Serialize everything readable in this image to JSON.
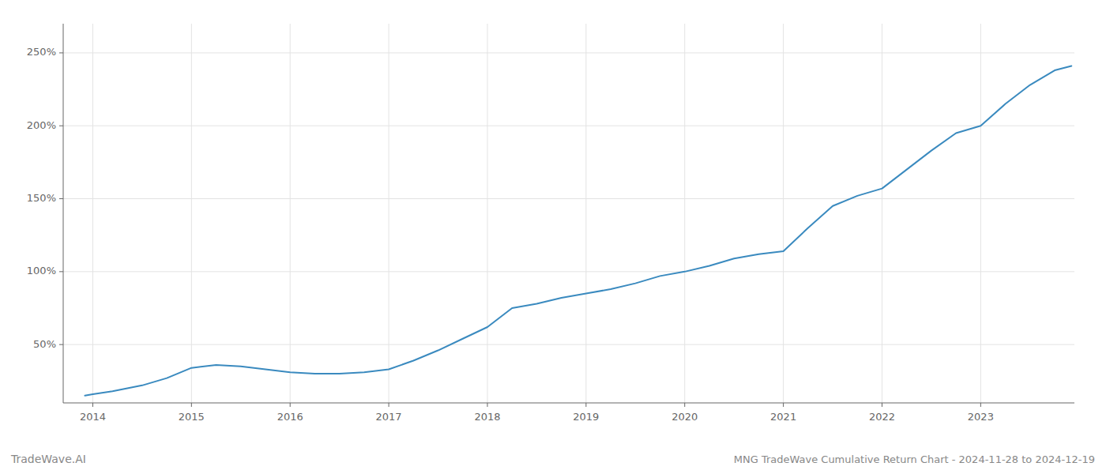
{
  "chart_data": {
    "type": "line",
    "title": "MNG TradeWave Cumulative Return Chart - 2024-11-28 to 2024-12-19",
    "annotations": [
      "TradeWave.AI"
    ],
    "color": "#3a8abf",
    "x": [
      2013.92,
      2014.0,
      2014.2,
      2014.5,
      2014.75,
      2015.0,
      2015.25,
      2015.5,
      2015.75,
      2016.0,
      2016.25,
      2016.5,
      2016.75,
      2017.0,
      2017.25,
      2017.5,
      2017.75,
      2018.0,
      2018.25,
      2018.5,
      2018.75,
      2019.0,
      2019.25,
      2019.5,
      2019.75,
      2020.0,
      2020.25,
      2020.5,
      2020.75,
      2021.0,
      2021.25,
      2021.5,
      2021.75,
      2022.0,
      2022.25,
      2022.5,
      2022.75,
      2023.0,
      2023.25,
      2023.5,
      2023.75,
      2023.92
    ],
    "values": [
      15,
      16,
      18,
      22,
      27,
      34,
      36,
      35,
      33,
      31,
      30,
      30,
      31,
      33,
      39,
      46,
      54,
      62,
      75,
      78,
      82,
      85,
      88,
      92,
      97,
      100,
      104,
      109,
      112,
      114,
      130,
      145,
      152,
      157,
      170,
      183,
      195,
      200,
      215,
      228,
      238,
      241
    ],
    "xlim": [
      2013.7,
      2023.95
    ],
    "ylim": [
      10,
      270
    ],
    "xticks": [
      2014,
      2015,
      2016,
      2017,
      2018,
      2019,
      2020,
      2021,
      2022,
      2023
    ],
    "yticks": [
      {
        "value": 50,
        "label": "50%"
      },
      {
        "value": 100,
        "label": "100%"
      },
      {
        "value": 150,
        "label": "150%"
      },
      {
        "value": 200,
        "label": "200%"
      },
      {
        "value": 250,
        "label": "250%"
      }
    ],
    "grid": true
  }
}
